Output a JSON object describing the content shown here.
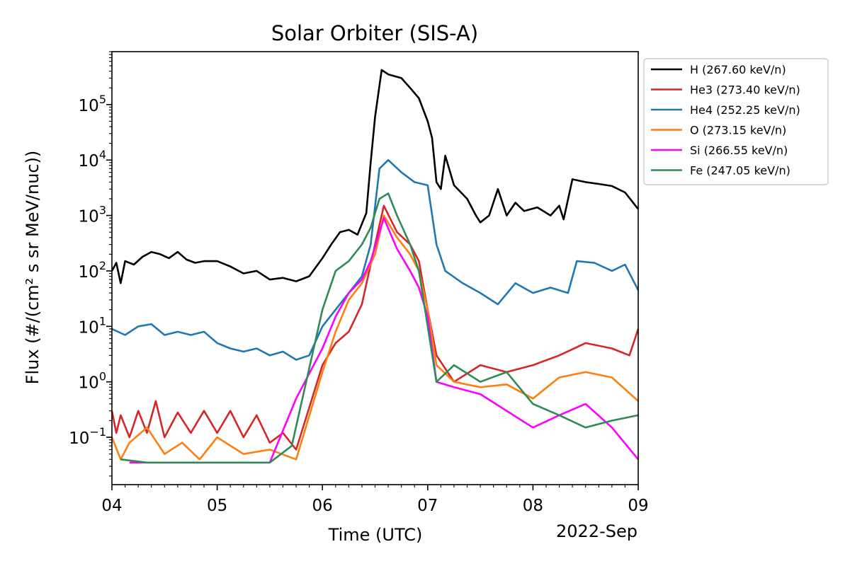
{
  "chart_data": {
    "type": "line",
    "title": "Solar Orbiter (SIS-A)",
    "xlabel": "Time (UTC)",
    "ylabel": "Flux (#/(cm² s sr MeV/nuc))",
    "x_offset_label": "2022-Sep",
    "x_tick_labels": [
      "04",
      "05",
      "06",
      "07",
      "08",
      "09"
    ],
    "x_ticks": [
      "2022-09-04",
      "2022-09-05",
      "2022-09-06",
      "2022-09-07",
      "2022-09-08",
      "2022-09-09"
    ],
    "xlim": [
      "2022-09-04T00:00",
      "2022-09-09T00:00"
    ],
    "y_scale": "log",
    "ylim": [
      0.014,
      900000.0
    ],
    "y_ticks": [
      {
        "value": 0.1,
        "mantissa": "10",
        "exponent": "−1"
      },
      {
        "value": 1,
        "mantissa": "10",
        "exponent": "0"
      },
      {
        "value": 10,
        "mantissa": "10",
        "exponent": "1"
      },
      {
        "value": 100,
        "mantissa": "10",
        "exponent": "2"
      },
      {
        "value": 1000,
        "mantissa": "10",
        "exponent": "3"
      },
      {
        "value": 10000,
        "mantissa": "10",
        "exponent": "4"
      },
      {
        "value": 100000,
        "mantissa": "10",
        "exponent": "5"
      }
    ],
    "grid": false,
    "legend_position": "outside-right-top",
    "series": [
      {
        "name": "H (267.60 keV/n)",
        "color": "#000000",
        "points": [
          [
            "2022-09-04T00:00",
            100
          ],
          [
            "2022-09-04T01:00",
            140
          ],
          [
            "2022-09-04T02:00",
            60
          ],
          [
            "2022-09-04T03:00",
            150
          ],
          [
            "2022-09-04T05:00",
            130
          ],
          [
            "2022-09-04T07:00",
            180
          ],
          [
            "2022-09-04T09:00",
            220
          ],
          [
            "2022-09-04T11:00",
            200
          ],
          [
            "2022-09-04T13:00",
            170
          ],
          [
            "2022-09-04T15:00",
            220
          ],
          [
            "2022-09-04T17:00",
            160
          ],
          [
            "2022-09-04T19:00",
            140
          ],
          [
            "2022-09-04T21:00",
            150
          ],
          [
            "2022-09-05T00:00",
            150
          ],
          [
            "2022-09-05T03:00",
            120
          ],
          [
            "2022-09-05T06:00",
            90
          ],
          [
            "2022-09-05T09:00",
            100
          ],
          [
            "2022-09-05T12:00",
            70
          ],
          [
            "2022-09-05T15:00",
            75
          ],
          [
            "2022-09-05T18:00",
            65
          ],
          [
            "2022-09-05T21:00",
            80
          ],
          [
            "2022-09-06T00:00",
            170
          ],
          [
            "2022-09-06T02:00",
            300
          ],
          [
            "2022-09-06T04:00",
            500
          ],
          [
            "2022-09-06T06:00",
            550
          ],
          [
            "2022-09-06T08:00",
            450
          ],
          [
            "2022-09-06T10:00",
            1100
          ],
          [
            "2022-09-06T11:00",
            9000
          ],
          [
            "2022-09-06T12:00",
            60000
          ],
          [
            "2022-09-06T13:30",
            420000
          ],
          [
            "2022-09-06T15:00",
            350000
          ],
          [
            "2022-09-06T18:00",
            300000
          ],
          [
            "2022-09-06T20:00",
            200000
          ],
          [
            "2022-09-06T22:00",
            130000
          ],
          [
            "2022-09-07T00:00",
            50000
          ],
          [
            "2022-09-07T01:00",
            25000
          ],
          [
            "2022-09-07T02:00",
            4000
          ],
          [
            "2022-09-07T03:00",
            3000
          ],
          [
            "2022-09-07T04:00",
            12000
          ],
          [
            "2022-09-07T06:00",
            3500
          ],
          [
            "2022-09-07T09:00",
            2000
          ],
          [
            "2022-09-07T11:00",
            1000
          ],
          [
            "2022-09-07T12:00",
            750
          ],
          [
            "2022-09-07T14:00",
            1000
          ],
          [
            "2022-09-07T16:00",
            3000
          ],
          [
            "2022-09-07T18:00",
            1000
          ],
          [
            "2022-09-07T20:00",
            1700
          ],
          [
            "2022-09-07T22:00",
            1200
          ],
          [
            "2022-09-08T01:00",
            1400
          ],
          [
            "2022-09-08T04:00",
            1000
          ],
          [
            "2022-09-08T06:00",
            1500
          ],
          [
            "2022-09-08T07:00",
            850
          ],
          [
            "2022-09-08T09:00",
            4500
          ],
          [
            "2022-09-08T12:00",
            4000
          ],
          [
            "2022-09-08T15:00",
            3700
          ],
          [
            "2022-09-08T18:00",
            3400
          ],
          [
            "2022-09-08T21:00",
            2600
          ],
          [
            "2022-09-09T00:00",
            1300
          ]
        ]
      },
      {
        "name": "He3 (273.40 keV/n)",
        "color": "#d62728",
        "points": [
          [
            "2022-09-04T00:00",
            0.3
          ],
          [
            "2022-09-04T01:00",
            0.12
          ],
          [
            "2022-09-04T02:00",
            0.25
          ],
          [
            "2022-09-04T04:00",
            0.1
          ],
          [
            "2022-09-04T06:00",
            0.3
          ],
          [
            "2022-09-04T08:00",
            0.12
          ],
          [
            "2022-09-04T10:00",
            0.45
          ],
          [
            "2022-09-04T12:00",
            0.1
          ],
          [
            "2022-09-04T15:00",
            0.28
          ],
          [
            "2022-09-04T18:00",
            0.12
          ],
          [
            "2022-09-04T21:00",
            0.3
          ],
          [
            "2022-09-05T00:00",
            0.12
          ],
          [
            "2022-09-05T03:00",
            0.3
          ],
          [
            "2022-09-05T06:00",
            0.1
          ],
          [
            "2022-09-05T09:00",
            0.25
          ],
          [
            "2022-09-05T12:00",
            0.08
          ],
          [
            "2022-09-05T15:00",
            0.12
          ],
          [
            "2022-09-05T18:00",
            0.06
          ],
          [
            "2022-09-06T00:00",
            2
          ],
          [
            "2022-09-06T03:00",
            5
          ],
          [
            "2022-09-06T06:00",
            8
          ],
          [
            "2022-09-06T09:00",
            25
          ],
          [
            "2022-09-06T12:00",
            300
          ],
          [
            "2022-09-06T14:00",
            1500
          ],
          [
            "2022-09-06T17:00",
            500
          ],
          [
            "2022-09-06T20:00",
            300
          ],
          [
            "2022-09-06T22:00",
            150
          ],
          [
            "2022-09-07T00:00",
            20
          ],
          [
            "2022-09-07T02:00",
            3
          ],
          [
            "2022-09-07T06:00",
            1
          ],
          [
            "2022-09-07T12:00",
            2
          ],
          [
            "2022-09-07T18:00",
            1.5
          ],
          [
            "2022-09-08T00:00",
            2
          ],
          [
            "2022-09-08T06:00",
            3
          ],
          [
            "2022-09-08T12:00",
            5
          ],
          [
            "2022-09-08T18:00",
            4
          ],
          [
            "2022-09-08T22:00",
            3
          ],
          [
            "2022-09-09T00:00",
            9
          ]
        ]
      },
      {
        "name": "He4 (252.25 keV/n)",
        "color": "#1f77b4",
        "points": [
          [
            "2022-09-04T00:00",
            9
          ],
          [
            "2022-09-04T03:00",
            7
          ],
          [
            "2022-09-04T06:00",
            10
          ],
          [
            "2022-09-04T09:00",
            11
          ],
          [
            "2022-09-04T12:00",
            7
          ],
          [
            "2022-09-04T15:00",
            8
          ],
          [
            "2022-09-04T18:00",
            7
          ],
          [
            "2022-09-04T21:00",
            8
          ],
          [
            "2022-09-05T00:00",
            5
          ],
          [
            "2022-09-05T03:00",
            4
          ],
          [
            "2022-09-05T06:00",
            3.5
          ],
          [
            "2022-09-05T09:00",
            4
          ],
          [
            "2022-09-05T12:00",
            3
          ],
          [
            "2022-09-05T15:00",
            3.5
          ],
          [
            "2022-09-05T18:00",
            2.5
          ],
          [
            "2022-09-05T21:00",
            3
          ],
          [
            "2022-09-06T00:00",
            10
          ],
          [
            "2022-09-06T03:00",
            20
          ],
          [
            "2022-09-06T06:00",
            40
          ],
          [
            "2022-09-06T09:00",
            80
          ],
          [
            "2022-09-06T11:00",
            300
          ],
          [
            "2022-09-06T13:00",
            7000
          ],
          [
            "2022-09-06T15:00",
            10000
          ],
          [
            "2022-09-06T18:00",
            6000
          ],
          [
            "2022-09-06T21:00",
            4000
          ],
          [
            "2022-09-07T00:00",
            3500
          ],
          [
            "2022-09-07T02:00",
            300
          ],
          [
            "2022-09-07T04:00",
            100
          ],
          [
            "2022-09-07T08:00",
            60
          ],
          [
            "2022-09-07T12:00",
            40
          ],
          [
            "2022-09-07T16:00",
            25
          ],
          [
            "2022-09-07T20:00",
            60
          ],
          [
            "2022-09-08T00:00",
            40
          ],
          [
            "2022-09-08T04:00",
            50
          ],
          [
            "2022-09-08T08:00",
            40
          ],
          [
            "2022-09-08T10:00",
            150
          ],
          [
            "2022-09-08T14:00",
            140
          ],
          [
            "2022-09-08T18:00",
            100
          ],
          [
            "2022-09-08T21:00",
            130
          ],
          [
            "2022-09-09T00:00",
            45
          ]
        ]
      },
      {
        "name": "O (273.15 keV/n)",
        "color": "#ff7f0e",
        "points": [
          [
            "2022-09-04T00:00",
            0.1
          ],
          [
            "2022-09-04T02:00",
            0.04
          ],
          [
            "2022-09-04T04:00",
            0.08
          ],
          [
            "2022-09-04T08:00",
            0.15
          ],
          [
            "2022-09-04T12:00",
            0.05
          ],
          [
            "2022-09-04T16:00",
            0.08
          ],
          [
            "2022-09-04T20:00",
            0.04
          ],
          [
            "2022-09-05T00:00",
            0.1
          ],
          [
            "2022-09-05T06:00",
            0.05
          ],
          [
            "2022-09-05T12:00",
            0.06
          ],
          [
            "2022-09-05T18:00",
            0.04
          ],
          [
            "2022-09-06T00:00",
            1.5
          ],
          [
            "2022-09-06T03:00",
            8
          ],
          [
            "2022-09-06T06:00",
            30
          ],
          [
            "2022-09-06T09:00",
            60
          ],
          [
            "2022-09-06T12:00",
            200
          ],
          [
            "2022-09-06T14:00",
            1000
          ],
          [
            "2022-09-06T17:00",
            400
          ],
          [
            "2022-09-06T20:00",
            200
          ],
          [
            "2022-09-06T22:00",
            100
          ],
          [
            "2022-09-07T00:00",
            20
          ],
          [
            "2022-09-07T02:00",
            2
          ],
          [
            "2022-09-07T06:00",
            1
          ],
          [
            "2022-09-07T12:00",
            0.8
          ],
          [
            "2022-09-07T18:00",
            0.9
          ],
          [
            "2022-09-08T00:00",
            0.5
          ],
          [
            "2022-09-08T06:00",
            1.2
          ],
          [
            "2022-09-08T12:00",
            1.5
          ],
          [
            "2022-09-08T18:00",
            1.2
          ],
          [
            "2022-09-09T00:00",
            0.45
          ]
        ]
      },
      {
        "name": "Si (266.55 keV/n)",
        "color": "#ff00ff",
        "points": [
          [
            "2022-09-04T04:00",
            0.035
          ],
          [
            "2022-09-05T00:00",
            0.035
          ],
          [
            "2022-09-05T12:00",
            0.035
          ],
          [
            "2022-09-05T18:00",
            0.5
          ],
          [
            "2022-09-06T00:00",
            4
          ],
          [
            "2022-09-06T03:00",
            15
          ],
          [
            "2022-09-06T06:00",
            40
          ],
          [
            "2022-09-06T09:00",
            70
          ],
          [
            "2022-09-06T11:00",
            150
          ],
          [
            "2022-09-06T14:00",
            900
          ],
          [
            "2022-09-06T17:00",
            250
          ],
          [
            "2022-09-06T20:00",
            100
          ],
          [
            "2022-09-06T22:00",
            50
          ],
          [
            "2022-09-07T00:00",
            15
          ],
          [
            "2022-09-07T02:00",
            1
          ],
          [
            "2022-09-07T06:00",
            0.8
          ],
          [
            "2022-09-07T12:00",
            0.6
          ],
          [
            "2022-09-08T00:00",
            0.15
          ],
          [
            "2022-09-08T06:00",
            0.25
          ],
          [
            "2022-09-08T12:00",
            0.4
          ],
          [
            "2022-09-08T18:00",
            0.15
          ],
          [
            "2022-09-09T00:00",
            0.04
          ]
        ]
      },
      {
        "name": "Fe (247.05 keV/n)",
        "color": "#2e8b57",
        "points": [
          [
            "2022-09-04T02:00",
            0.04
          ],
          [
            "2022-09-04T08:00",
            0.035
          ],
          [
            "2022-09-05T00:00",
            0.035
          ],
          [
            "2022-09-05T12:00",
            0.035
          ],
          [
            "2022-09-05T17:00",
            0.07
          ],
          [
            "2022-09-06T00:00",
            20
          ],
          [
            "2022-09-06T03:00",
            100
          ],
          [
            "2022-09-06T06:00",
            150
          ],
          [
            "2022-09-06T09:00",
            300
          ],
          [
            "2022-09-06T11:00",
            600
          ],
          [
            "2022-09-06T13:00",
            2000
          ],
          [
            "2022-09-06T15:00",
            2500
          ],
          [
            "2022-09-06T17:00",
            1000
          ],
          [
            "2022-09-06T20:00",
            300
          ],
          [
            "2022-09-06T22:00",
            100
          ],
          [
            "2022-09-07T00:00",
            10
          ],
          [
            "2022-09-07T02:00",
            1
          ],
          [
            "2022-09-07T06:00",
            2
          ],
          [
            "2022-09-07T12:00",
            1
          ],
          [
            "2022-09-07T18:00",
            1.5
          ],
          [
            "2022-09-08T00:00",
            0.4
          ],
          [
            "2022-09-08T06:00",
            0.25
          ],
          [
            "2022-09-08T12:00",
            0.15
          ],
          [
            "2022-09-08T18:00",
            0.2
          ],
          [
            "2022-09-09T00:00",
            0.25
          ]
        ]
      }
    ]
  }
}
